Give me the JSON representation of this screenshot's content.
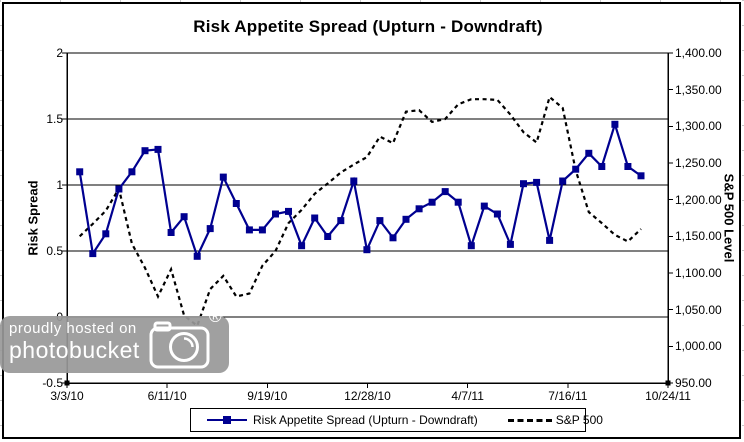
{
  "chart_data": {
    "type": "line",
    "title": "Risk Appetite Spread (Upturn - Downdraft)",
    "grid": true,
    "legend_position": "bottom",
    "x_ticks": [
      "3/3/10",
      "6/11/10",
      "9/19/10",
      "12/28/10",
      "4/7/11",
      "7/16/11",
      "10/24/11"
    ],
    "y_left": {
      "label": "Risk Spread",
      "min": -0.5,
      "max": 2,
      "tick_labels": [
        "2",
        "1.5",
        "1",
        "0.5",
        "0",
        "-0.5"
      ],
      "tick_values": [
        2,
        1.5,
        1,
        0.5,
        0,
        -0.5
      ]
    },
    "y_right": {
      "label": "S&P 500 Level",
      "min": 950,
      "max": 1400,
      "tick_labels": [
        "1,400.00",
        "1,350.00",
        "1,300.00",
        "1,250.00",
        "1,200.00",
        "1,150.00",
        "1,100.00",
        "1,050.00",
        "1,000.00",
        "950.00"
      ],
      "tick_values": [
        1400,
        1350,
        1300,
        1250,
        1200,
        1150,
        1100,
        1050,
        1000,
        950
      ]
    },
    "series": [
      {
        "name": "Risk Appetite Spread (Upturn - Downdraft)",
        "axis": "left",
        "style": "solid-line-square-markers",
        "color": "#000090",
        "values": [
          1.1,
          0.48,
          0.63,
          0.97,
          1.1,
          1.26,
          1.27,
          0.64,
          0.76,
          0.46,
          0.67,
          1.06,
          0.86,
          0.66,
          0.66,
          0.78,
          0.8,
          0.54,
          0.75,
          0.61,
          0.73,
          1.03,
          0.51,
          0.73,
          0.6,
          0.74,
          0.82,
          0.87,
          0.95,
          0.87,
          0.54,
          0.84,
          0.78,
          0.55,
          1.01,
          1.02,
          0.58,
          1.03,
          1.12,
          1.24,
          1.14,
          1.46,
          1.14,
          1.07
        ]
      },
      {
        "name": "S&P 500",
        "axis": "right",
        "style": "dashed-line",
        "color": "#000000",
        "values": [
          1150,
          1167,
          1185,
          1215,
          1140,
          1107,
          1068,
          1105,
          1042,
          1028,
          1078,
          1096,
          1068,
          1072,
          1110,
          1130,
          1168,
          1186,
          1208,
          1222,
          1237,
          1248,
          1258,
          1286,
          1277,
          1320,
          1322,
          1306,
          1310,
          1330,
          1337,
          1337,
          1336,
          1316,
          1292,
          1278,
          1340,
          1325,
          1240,
          1183,
          1168,
          1152,
          1143,
          1160
        ]
      }
    ]
  },
  "watermark": {
    "line1": "proudly hosted on",
    "line2": "photobucket",
    "registered": "®"
  },
  "colors": {
    "series1": "#000090",
    "series2": "#000000",
    "gridline": "#000000",
    "watermark_bg": "#989898"
  }
}
